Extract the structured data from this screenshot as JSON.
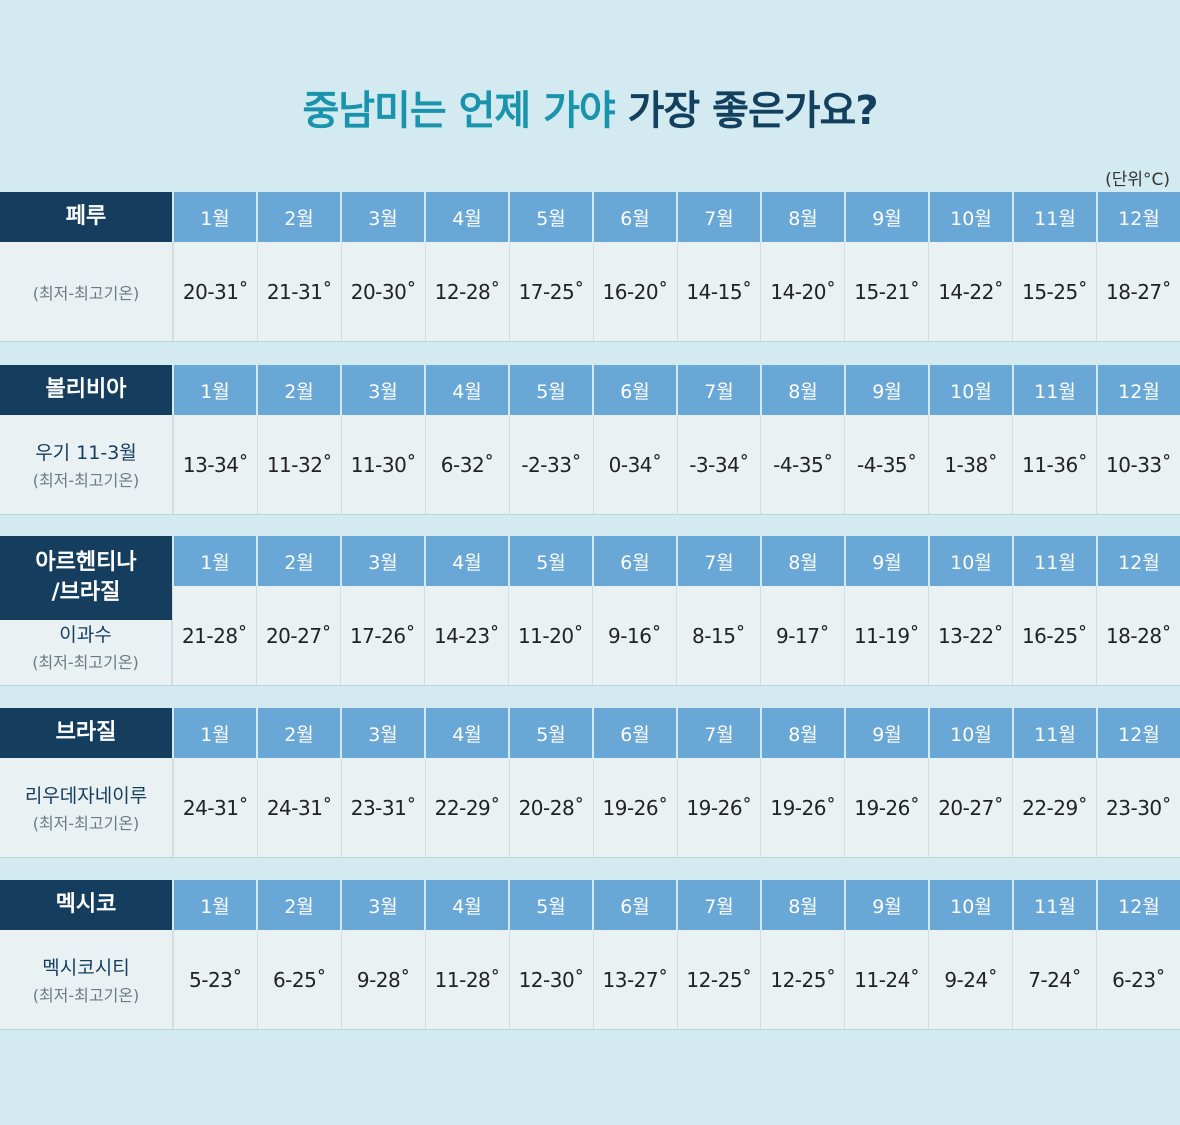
{
  "title": {
    "part1": "중남미는 언제 가야",
    "part2": " 가장 좋은가요?"
  },
  "unit": "(단위°C)",
  "months": [
    "1월",
    "2월",
    "3월",
    "4월",
    "5월",
    "6월",
    "7월",
    "8월",
    "9월",
    "10월",
    "11월",
    "12월"
  ],
  "sublabel": "(최저-최고기온)",
  "peru": {
    "country": "페루",
    "values": [
      "20-31˚",
      "21-31˚",
      "20-30˚",
      "12-28˚",
      "17-25˚",
      "16-20˚",
      "14-15˚",
      "14-20˚",
      "15-21˚",
      "14-22˚",
      "15-25˚",
      "18-27˚"
    ]
  },
  "bolivia": {
    "country": "볼리비아",
    "place": "우기 11-3월",
    "values": [
      "13-34˚",
      "11-32˚",
      "11-30˚",
      "6-32˚",
      "-2-33˚",
      "0-34˚",
      "-3-34˚",
      "-4-35˚",
      "-4-35˚",
      "1-38˚",
      "11-36˚",
      "10-33˚"
    ]
  },
  "argentina": {
    "country": "아르헨티나\n/브라질",
    "place": "이과수",
    "values": [
      "21-28˚",
      "20-27˚",
      "17-26˚",
      "14-23˚",
      "11-20˚",
      "9-16˚",
      "8-15˚",
      "9-17˚",
      "11-19˚",
      "13-22˚",
      "16-25˚",
      "18-28˚"
    ]
  },
  "brazil": {
    "country": "브라질",
    "place": "리우데자네이루",
    "values": [
      "24-31˚",
      "24-31˚",
      "23-31˚",
      "22-29˚",
      "20-28˚",
      "19-26˚",
      "19-26˚",
      "19-26˚",
      "19-26˚",
      "20-27˚",
      "22-29˚",
      "23-30˚"
    ]
  },
  "mexico": {
    "country": "멕시코",
    "place": "멕시코시티",
    "values": [
      "5-23˚",
      "6-25˚",
      "9-28˚",
      "11-28˚",
      "12-30˚",
      "13-27˚",
      "12-25˚",
      "12-25˚",
      "11-24˚",
      "9-24˚",
      "7-24˚",
      "6-23˚"
    ]
  }
}
